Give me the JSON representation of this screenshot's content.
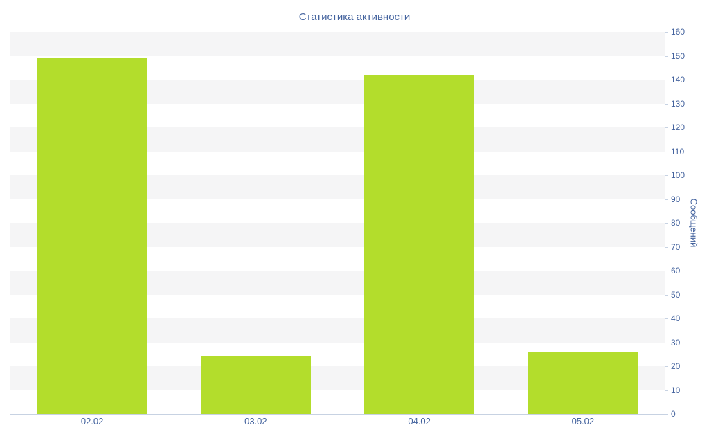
{
  "chart_data": {
    "type": "bar",
    "title": "Статистика активности",
    "categories": [
      "02.02",
      "03.02",
      "04.02",
      "05.02"
    ],
    "values": [
      149,
      24,
      142,
      26
    ],
    "xlabel": "",
    "ylabel": "Сообщений",
    "ylim": [
      0,
      160
    ],
    "ytick_step": 10,
    "legend": "none",
    "grid": "alternating-horizontal-bands",
    "colors": {
      "bar": "#b3dd2c",
      "band": "#f5f5f6",
      "background": "#ffffff",
      "axis_line": "#c7d2e2",
      "text": "#44639e"
    }
  }
}
